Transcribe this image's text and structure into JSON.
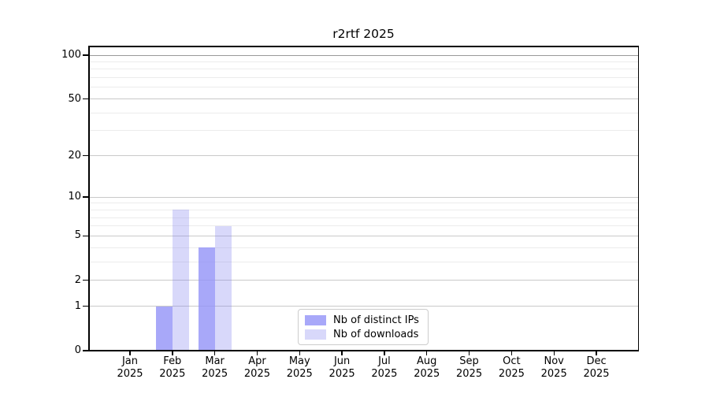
{
  "chart_data": {
    "type": "bar",
    "title": "r2rtf 2025",
    "year_label": "2025",
    "categories": [
      "Jan",
      "Feb",
      "Mar",
      "Apr",
      "May",
      "Jun",
      "Jul",
      "Aug",
      "Sep",
      "Oct",
      "Nov",
      "Dec"
    ],
    "series": [
      {
        "name": "Nb of distinct IPs",
        "key": "distinct-ips",
        "color": "rgba(146,146,247,0.80)",
        "values": [
          0,
          1,
          4,
          0,
          0,
          0,
          0,
          0,
          0,
          0,
          0,
          0
        ]
      },
      {
        "name": "Nb of downloads",
        "key": "downloads",
        "color": "rgba(125,125,240,0.30)",
        "values": [
          0,
          8,
          6,
          0,
          0,
          0,
          0,
          0,
          0,
          0,
          0,
          0
        ]
      }
    ],
    "xlabel": "",
    "ylabel": "",
    "yscale": "log1p",
    "ylim": [
      0,
      115
    ],
    "yticks": [
      0,
      1,
      2,
      5,
      10,
      20,
      50,
      100
    ],
    "minor_gridlines": [
      3,
      4,
      6,
      7,
      8,
      9,
      30,
      40,
      60,
      70,
      80,
      90
    ],
    "grid": "on",
    "legend_position": "lower center",
    "colors": {
      "axis": "#000000",
      "gridline_major": "#c9c9c9",
      "gridline_minor": "#ececec",
      "gridline_top": "#9a9a9a",
      "background": "#ffffff"
    }
  }
}
